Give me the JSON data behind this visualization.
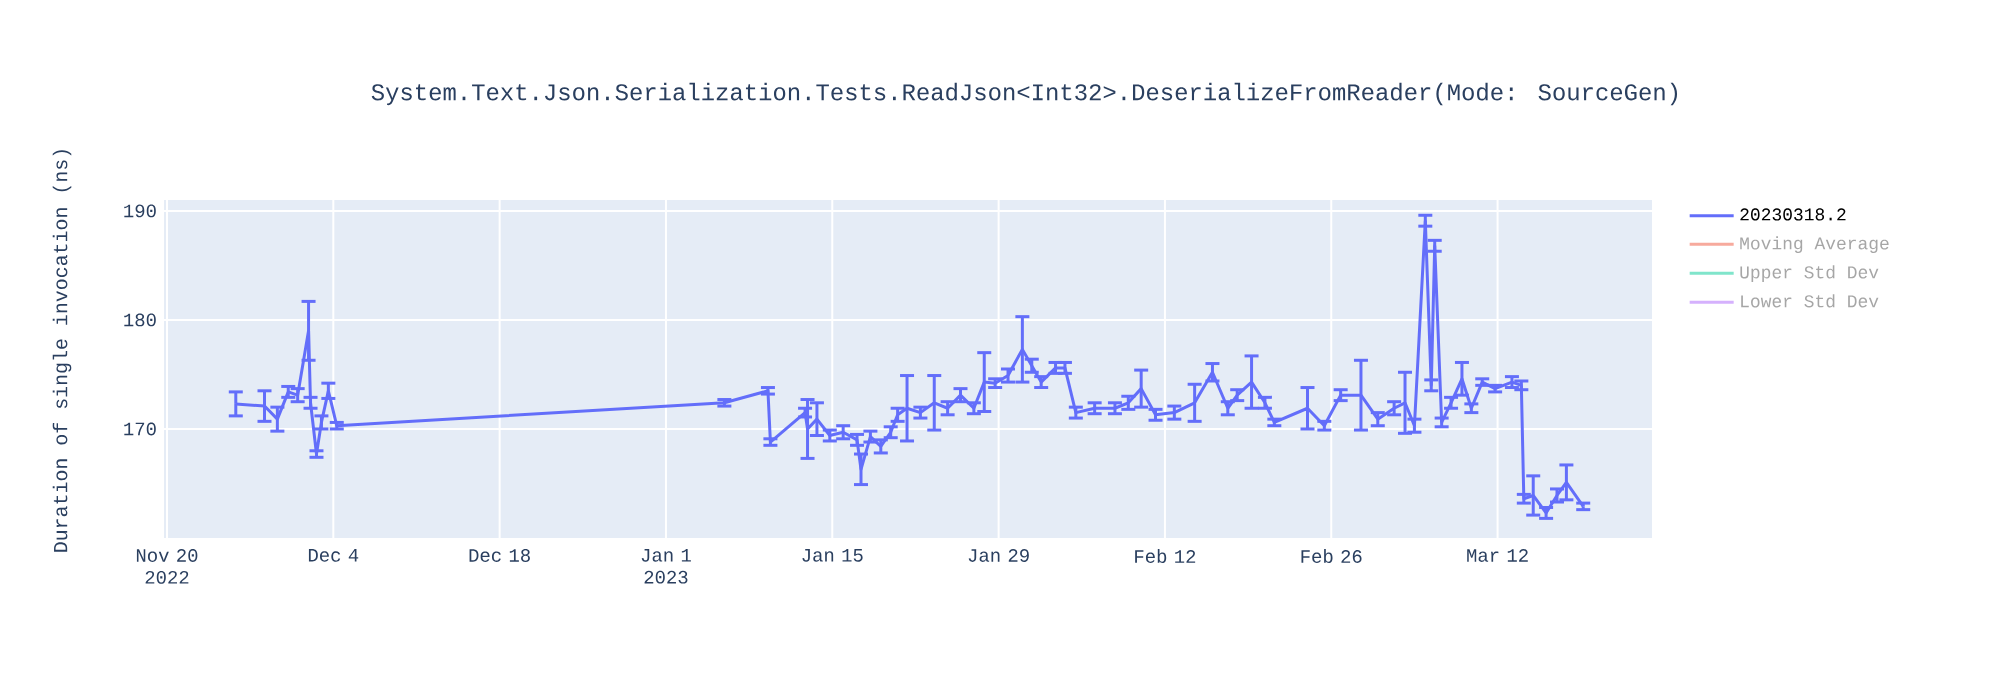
{
  "chart_data": {
    "type": "line",
    "title": "System.Text.Json.Serialization.Tests.ReadJson<Int32>.DeserializeFromReader(Mode: SourceGen)",
    "ylabel": "Duration of single invocation (ns)",
    "x": [
      "2022-11-25T19:00",
      "2022-11-28T05:00",
      "2022-11-29T07:00",
      "2022-11-30T05:00",
      "2022-12-01T00:00",
      "2022-12-01T22:00",
      "2022-12-02T02:00",
      "2022-12-02T14:00",
      "2022-12-03T00:00",
      "2022-12-03T14:00",
      "2022-12-04T07:00",
      "2023-01-05T22:00",
      "2023-01-09T14:00",
      "2023-01-09T19:00",
      "2023-01-12T17:00",
      "2023-01-12T22:00",
      "2023-01-13T17:00",
      "2023-01-14T19:00",
      "2023-01-15T22:00",
      "2023-01-17T02:00",
      "2023-01-17T10:00",
      "2023-01-18T05:00",
      "2023-01-19T02:00",
      "2023-01-19T22:00",
      "2023-01-20T12:00",
      "2023-01-21T07:00",
      "2023-01-22T10:00",
      "2023-01-23T14:00",
      "2023-01-24T17:00",
      "2023-01-25T19:00",
      "2023-01-26T22:00",
      "2023-01-27T19:00",
      "2023-01-28T17:00",
      "2023-01-29T19:00",
      "2023-01-31T00:00",
      "2023-01-31T19:00",
      "2023-02-01T14:00",
      "2023-02-02T19:00",
      "2023-02-03T14:00",
      "2023-02-04T12:00",
      "2023-02-06T02:00",
      "2023-02-07T19:00",
      "2023-02-08T22:00",
      "2023-02-10T00:00",
      "2023-02-11T05:00",
      "2023-02-12T19:00",
      "2023-02-14T12:00",
      "2023-02-16T00:00",
      "2023-02-17T07:00",
      "2023-02-18T02:00",
      "2023-02-19T07:00",
      "2023-02-20T10:00",
      "2023-02-21T05:00",
      "2023-02-24T00:00",
      "2023-02-25T10:00",
      "2023-02-26T19:00",
      "2023-02-28T12:00",
      "2023-03-01T22:00",
      "2023-03-03T07:00",
      "2023-03-04T05:00",
      "2023-03-05T00:00",
      "2023-03-05T22:00",
      "2023-03-06T10:00",
      "2023-03-06T17:00",
      "2023-03-07T07:00",
      "2023-03-08T02:00",
      "2023-03-09T00:00",
      "2023-03-09T19:00",
      "2023-03-10T17:00",
      "2023-03-11T19:00",
      "2023-03-13T05:00",
      "2023-03-14T00:00",
      "2023-03-14T05:00",
      "2023-03-15T00:00",
      "2023-03-16T02:00",
      "2023-03-17T00:00",
      "2023-03-17T19:00",
      "2023-03-19T05:00"
    ],
    "series": [
      {
        "name": "20230318.2",
        "color": "#636efa",
        "values": [
          172.3,
          172.1,
          170.9,
          173.4,
          173.1,
          179.0,
          172.4,
          167.7,
          170.6,
          173.5,
          170.3,
          172.4,
          173.5,
          168.8,
          171.5,
          170.0,
          170.9,
          169.4,
          169.7,
          169.0,
          166.3,
          169.3,
          168.4,
          169.7,
          171.3,
          171.9,
          171.5,
          172.4,
          171.9,
          173.1,
          171.9,
          174.3,
          174.2,
          174.9,
          177.3,
          175.8,
          174.3,
          175.6,
          175.6,
          171.5,
          171.9,
          171.9,
          172.4,
          173.7,
          171.3,
          171.5,
          172.4,
          175.2,
          171.9,
          173.1,
          174.3,
          172.4,
          170.6,
          171.9,
          170.3,
          173.1,
          173.1,
          170.9,
          171.9,
          172.4,
          170.3,
          189.1,
          174.0,
          186.8,
          170.6,
          172.4,
          174.6,
          171.9,
          174.3,
          173.7,
          174.3,
          174.0,
          163.6,
          163.9,
          162.3,
          163.9,
          165.1,
          162.9
        ],
        "errors": [
          1.1,
          1.4,
          1.1,
          0.5,
          0.6,
          2.7,
          0.5,
          0.3,
          0.6,
          0.7,
          0.3,
          0.3,
          0.3,
          0.3,
          0.4,
          2.7,
          1.5,
          0.5,
          0.6,
          0.5,
          1.4,
          0.5,
          0.6,
          0.5,
          0.6,
          3.0,
          0.5,
          2.5,
          0.6,
          0.6,
          0.5,
          2.7,
          0.4,
          0.6,
          3.0,
          0.6,
          0.5,
          0.5,
          0.5,
          0.5,
          0.5,
          0.5,
          0.6,
          1.7,
          0.5,
          0.6,
          1.7,
          0.8,
          0.6,
          0.5,
          2.4,
          0.5,
          0.3,
          1.9,
          0.4,
          0.5,
          3.2,
          0.6,
          0.6,
          2.8,
          0.6,
          0.5,
          0.5,
          0.5,
          0.4,
          0.5,
          1.5,
          0.4,
          0.3,
          0.3,
          0.5,
          0.4,
          0.4,
          1.8,
          0.5,
          0.6,
          1.6,
          0.3
        ]
      },
      {
        "name": "Moving Average",
        "color": "#f7aa9d",
        "values": [
          null,
          null,
          null,
          null,
          null,
          null,
          null,
          null,
          null,
          null,
          null,
          null,
          null,
          null,
          null,
          null,
          null,
          null,
          null,
          null,
          null,
          null,
          null,
          null,
          null,
          null,
          null,
          null,
          null,
          null,
          null,
          null,
          null,
          null,
          null,
          null,
          null,
          null,
          null,
          null,
          null,
          null,
          null,
          null,
          null,
          null,
          null,
          null,
          null,
          null,
          null,
          null,
          null,
          null,
          null,
          null,
          null,
          null,
          null,
          null,
          null,
          null,
          null,
          null,
          null,
          null,
          null,
          null,
          null,
          null,
          null,
          null,
          null,
          null,
          null,
          null,
          null,
          null
        ]
      },
      {
        "name": "Upper Std Dev",
        "color": "#80e5cb",
        "values": [
          null,
          null,
          null,
          null,
          null,
          null,
          null,
          null,
          null,
          null,
          null,
          null,
          null,
          null,
          null,
          null,
          null,
          null,
          null,
          null,
          null,
          null,
          null,
          null,
          null,
          null,
          null,
          null,
          null,
          null,
          null,
          null,
          null,
          null,
          null,
          null,
          null,
          null,
          null,
          null,
          null,
          null,
          null,
          null,
          null,
          null,
          null,
          null,
          null,
          null,
          null,
          null,
          null,
          null,
          null,
          null,
          null,
          null,
          null,
          null,
          null,
          null,
          null,
          null,
          null,
          null,
          null,
          null,
          null,
          null,
          null,
          null,
          null,
          null,
          null,
          null,
          null,
          null
        ]
      },
      {
        "name": "Lower Std Dev",
        "color": "#d5b1fd",
        "values": [
          null,
          null,
          null,
          null,
          null,
          null,
          null,
          null,
          null,
          null,
          null,
          null,
          null,
          null,
          null,
          null,
          null,
          null,
          null,
          null,
          null,
          null,
          null,
          null,
          null,
          null,
          null,
          null,
          null,
          null,
          null,
          null,
          null,
          null,
          null,
          null,
          null,
          null,
          null,
          null,
          null,
          null,
          null,
          null,
          null,
          null,
          null,
          null,
          null,
          null,
          null,
          null,
          null,
          null,
          null,
          null,
          null,
          null,
          null,
          null,
          null,
          null,
          null,
          null,
          null,
          null,
          null,
          null,
          null,
          null,
          null,
          null,
          null,
          null,
          null,
          null,
          null,
          null
        ]
      }
    ],
    "xlim": [
      "2022-11-19T18:00",
      "2023-03-25"
    ],
    "xticks": [
      {
        "value": "2022-11-20",
        "label": "Nov 20 2022"
      },
      {
        "value": "2022-12-04",
        "label": "Dec 4"
      },
      {
        "value": "2022-12-18",
        "label": "Dec 18"
      },
      {
        "value": "2023-01-01",
        "label": "Jan 1 2023"
      },
      {
        "value": "2023-01-15",
        "label": "Jan 15"
      },
      {
        "value": "2023-01-29",
        "label": "Jan 29"
      },
      {
        "value": "2023-02-12",
        "label": "Feb 12"
      },
      {
        "value": "2023-02-26",
        "label": "Feb 26"
      },
      {
        "value": "2023-03-12",
        "label": "Mar 12"
      }
    ],
    "ylim": [
      160,
      191
    ],
    "yticks": [
      170,
      180,
      190
    ],
    "grid": true,
    "legend": "top right",
    "marker": "none",
    "line_style": "solid"
  }
}
